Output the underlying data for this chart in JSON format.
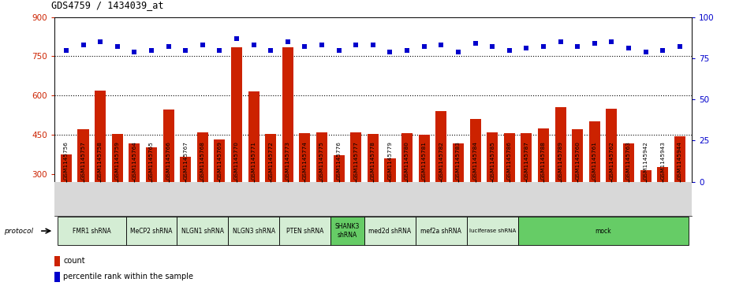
{
  "title": "GDS4759 / 1434039_at",
  "samples": [
    "GSM1145756",
    "GSM1145757",
    "GSM1145758",
    "GSM1145759",
    "GSM1145764",
    "GSM1145765",
    "GSM1145766",
    "GSM1145767",
    "GSM1145768",
    "GSM1145769",
    "GSM1145770",
    "GSM1145771",
    "GSM1145772",
    "GSM1145773",
    "GSM1145774",
    "GSM1145775",
    "GSM1145776",
    "GSM1145777",
    "GSM1145778",
    "GSM1145779",
    "GSM1145780",
    "GSM1145781",
    "GSM1145782",
    "GSM1145783",
    "GSM1145784",
    "GSM1145785",
    "GSM1145786",
    "GSM1145787",
    "GSM1145788",
    "GSM1145789",
    "GSM1145760",
    "GSM1145761",
    "GSM1145762",
    "GSM1145763",
    "GSM1145942",
    "GSM1145943",
    "GSM1145944"
  ],
  "counts": [
    375,
    470,
    620,
    453,
    415,
    400,
    545,
    365,
    460,
    430,
    785,
    615,
    453,
    785,
    455,
    460,
    370,
    460,
    453,
    360,
    455,
    450,
    540,
    415,
    510,
    460,
    455,
    455,
    475,
    555,
    470,
    500,
    550,
    415,
    315,
    325,
    445
  ],
  "percentiles": [
    80,
    83,
    85,
    82,
    79,
    80,
    82,
    80,
    83,
    80,
    87,
    83,
    80,
    85,
    82,
    83,
    80,
    83,
    83,
    79,
    80,
    82,
    83,
    79,
    84,
    82,
    80,
    81,
    82,
    85,
    82,
    84,
    85,
    81,
    79,
    80,
    82
  ],
  "protocol_groups": [
    {
      "label": "FMR1 shRNA",
      "start": 0,
      "end": 3,
      "color": "#d4edd4"
    },
    {
      "label": "MeCP2 shRNA",
      "start": 4,
      "end": 6,
      "color": "#d4edd4"
    },
    {
      "label": "NLGN1 shRNA",
      "start": 7,
      "end": 9,
      "color": "#d4edd4"
    },
    {
      "label": "NLGN3 shRNA",
      "start": 10,
      "end": 12,
      "color": "#d4edd4"
    },
    {
      "label": "PTEN shRNA",
      "start": 13,
      "end": 15,
      "color": "#d4edd4"
    },
    {
      "label": "SHANK3\nshRNA",
      "start": 16,
      "end": 17,
      "color": "#66cc66"
    },
    {
      "label": "med2d shRNA",
      "start": 18,
      "end": 20,
      "color": "#d4edd4"
    },
    {
      "label": "mef2a shRNA",
      "start": 21,
      "end": 23,
      "color": "#d4edd4"
    },
    {
      "label": "luciferase shRNA",
      "start": 24,
      "end": 26,
      "color": "#d4edd4"
    },
    {
      "label": "mock",
      "start": 27,
      "end": 36,
      "color": "#66cc66"
    }
  ],
  "ylim_left": [
    270,
    900
  ],
  "yticks_left": [
    300,
    450,
    600,
    750,
    900
  ],
  "ylim_right": [
    0,
    100
  ],
  "yticks_right": [
    0,
    25,
    50,
    75,
    100
  ],
  "hlines": [
    450,
    600,
    750
  ],
  "bar_color": "#cc2200",
  "dot_color": "#0000cc",
  "label_count": "count",
  "label_percentile": "percentile rank within the sample"
}
